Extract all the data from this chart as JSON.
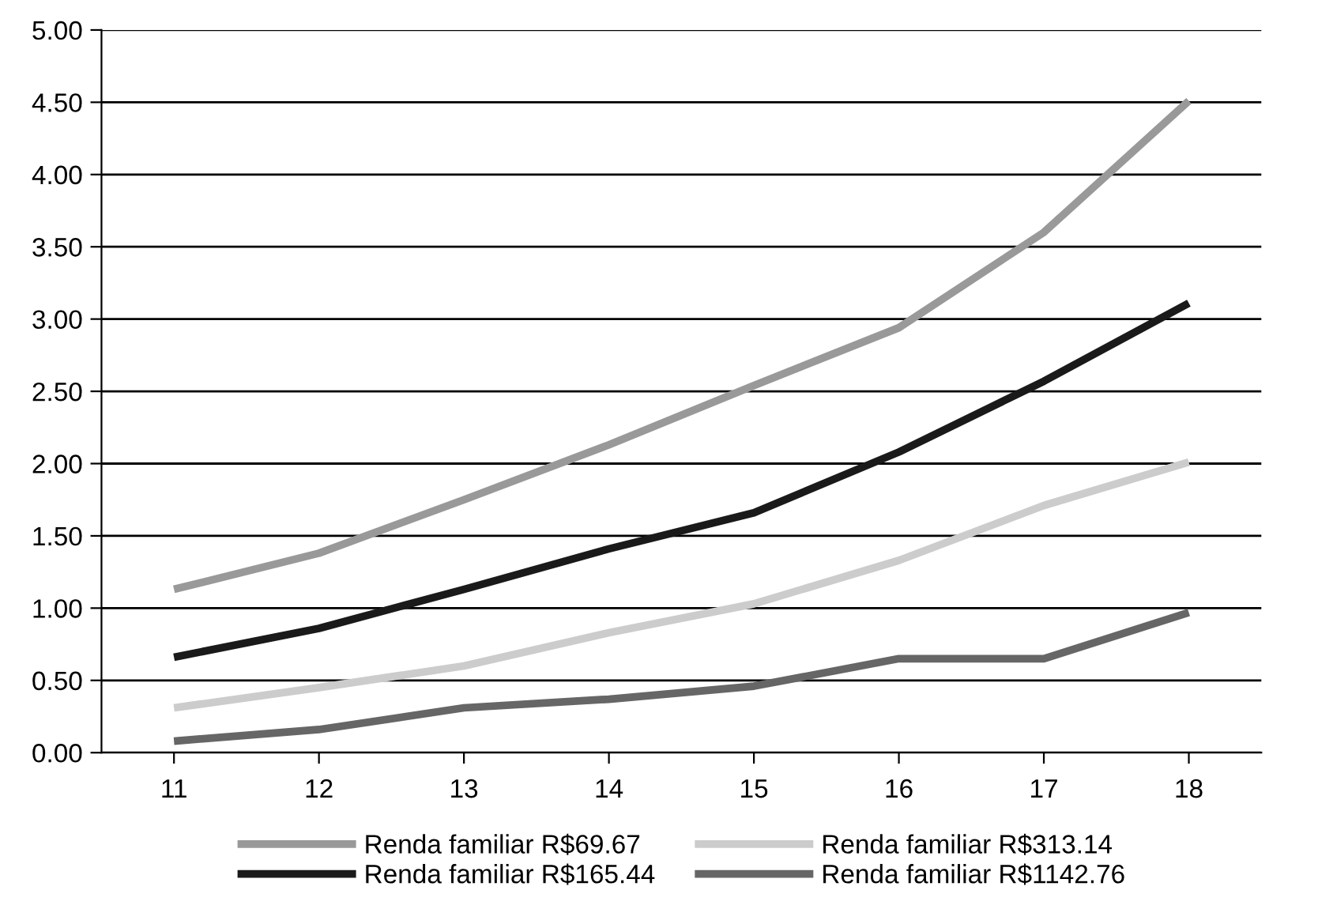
{
  "chart_data": {
    "type": "line",
    "categories": [
      "11",
      "12",
      "13",
      "14",
      "15",
      "16",
      "17",
      "18"
    ],
    "series": [
      {
        "name": "Renda familiar R$69.67",
        "color": "#999999",
        "values": [
          1.13,
          1.38,
          1.75,
          2.13,
          2.54,
          2.94,
          3.6,
          4.51
        ]
      },
      {
        "name": "Renda familiar R$165.44",
        "color": "#1a1a1a",
        "values": [
          0.66,
          0.86,
          1.13,
          1.41,
          1.66,
          2.08,
          2.57,
          3.11
        ]
      },
      {
        "name": "Renda familiar R$313.14",
        "color": "#cccccc",
        "values": [
          0.31,
          0.45,
          0.6,
          0.83,
          1.03,
          1.33,
          1.71,
          2.01
        ]
      },
      {
        "name": "Renda familiar R$1142.76",
        "color": "#666666",
        "values": [
          0.08,
          0.16,
          0.31,
          0.37,
          0.46,
          0.65,
          0.65,
          0.97
        ]
      }
    ],
    "ylim": [
      0,
      5
    ],
    "yticks": [
      {
        "value": 0,
        "label": "0.00"
      },
      {
        "value": 0.5,
        "label": "0.50"
      },
      {
        "value": 1,
        "label": "1.00"
      },
      {
        "value": 1.5,
        "label": "1.50"
      },
      {
        "value": 2,
        "label": "2.00"
      },
      {
        "value": 2.5,
        "label": "2.50"
      },
      {
        "value": 3,
        "label": "3.00"
      },
      {
        "value": 3.5,
        "label": "3.50"
      },
      {
        "value": 4,
        "label": "4.00"
      },
      {
        "value": 4.5,
        "label": "4.50"
      },
      {
        "value": 5,
        "label": "5.00"
      }
    ],
    "grid": "y",
    "legend": "bottom",
    "marker": "none",
    "line_style": "solid"
  }
}
